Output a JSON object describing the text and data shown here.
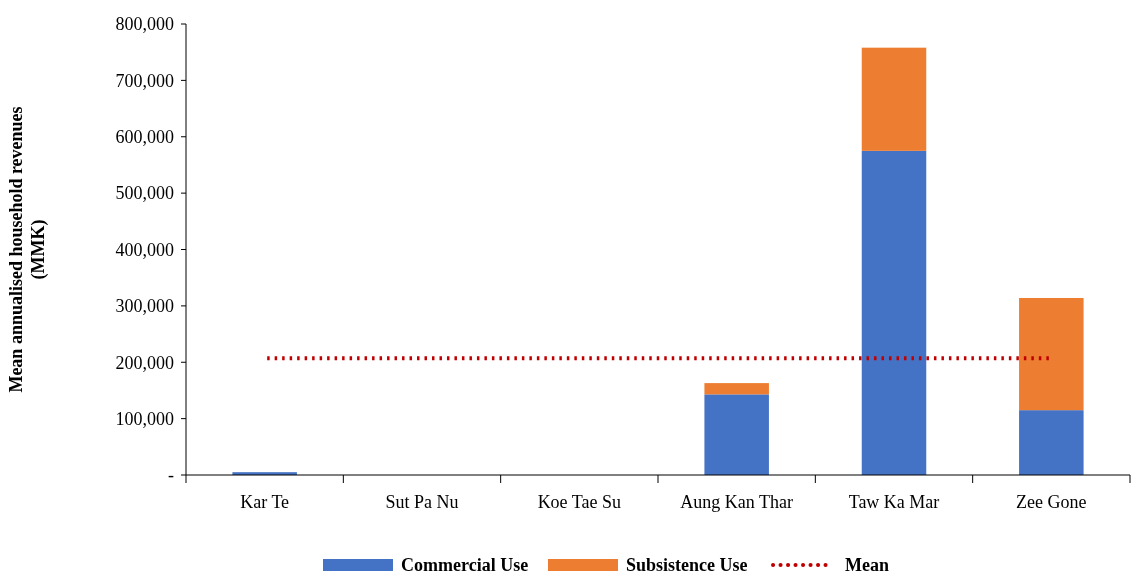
{
  "chart_data": {
    "type": "bar",
    "ylabel": "Mean annualised household revenues (MMK)",
    "categories": [
      "Kar Te",
      "Sut Pa Nu",
      "Koe Tae Su",
      "Aung Kan Thar",
      "Taw Ka Mar",
      "Zee Gone"
    ],
    "stacked": true,
    "ylim": [
      0,
      800000
    ],
    "yticks": [
      {
        "value": 0,
        "label": "-"
      },
      {
        "value": 100000,
        "label": "100,000"
      },
      {
        "value": 200000,
        "label": "200,000"
      },
      {
        "value": 300000,
        "label": "300,000"
      },
      {
        "value": 400000,
        "label": "400,000"
      },
      {
        "value": 500000,
        "label": "500,000"
      },
      {
        "value": 600000,
        "label": "600,000"
      },
      {
        "value": 700000,
        "label": "700,000"
      },
      {
        "value": 800000,
        "label": "800,000"
      }
    ],
    "grid": false,
    "legend": "bottom",
    "series": [
      {
        "name": "Commercial Use",
        "color": "#4472c4",
        "values": [
          5000,
          0,
          0,
          143000,
          575000,
          115000
        ]
      },
      {
        "name": "Subsistence Use",
        "color": "#ed7d31",
        "values": [
          0,
          0,
          0,
          20000,
          183000,
          199000
        ]
      },
      {
        "name": "Mean",
        "type": "line",
        "color": "#c00000",
        "line_style": "dotted",
        "marker": "none",
        "values": [
          207000,
          207000,
          207000,
          207000,
          207000,
          207000
        ]
      }
    ]
  }
}
